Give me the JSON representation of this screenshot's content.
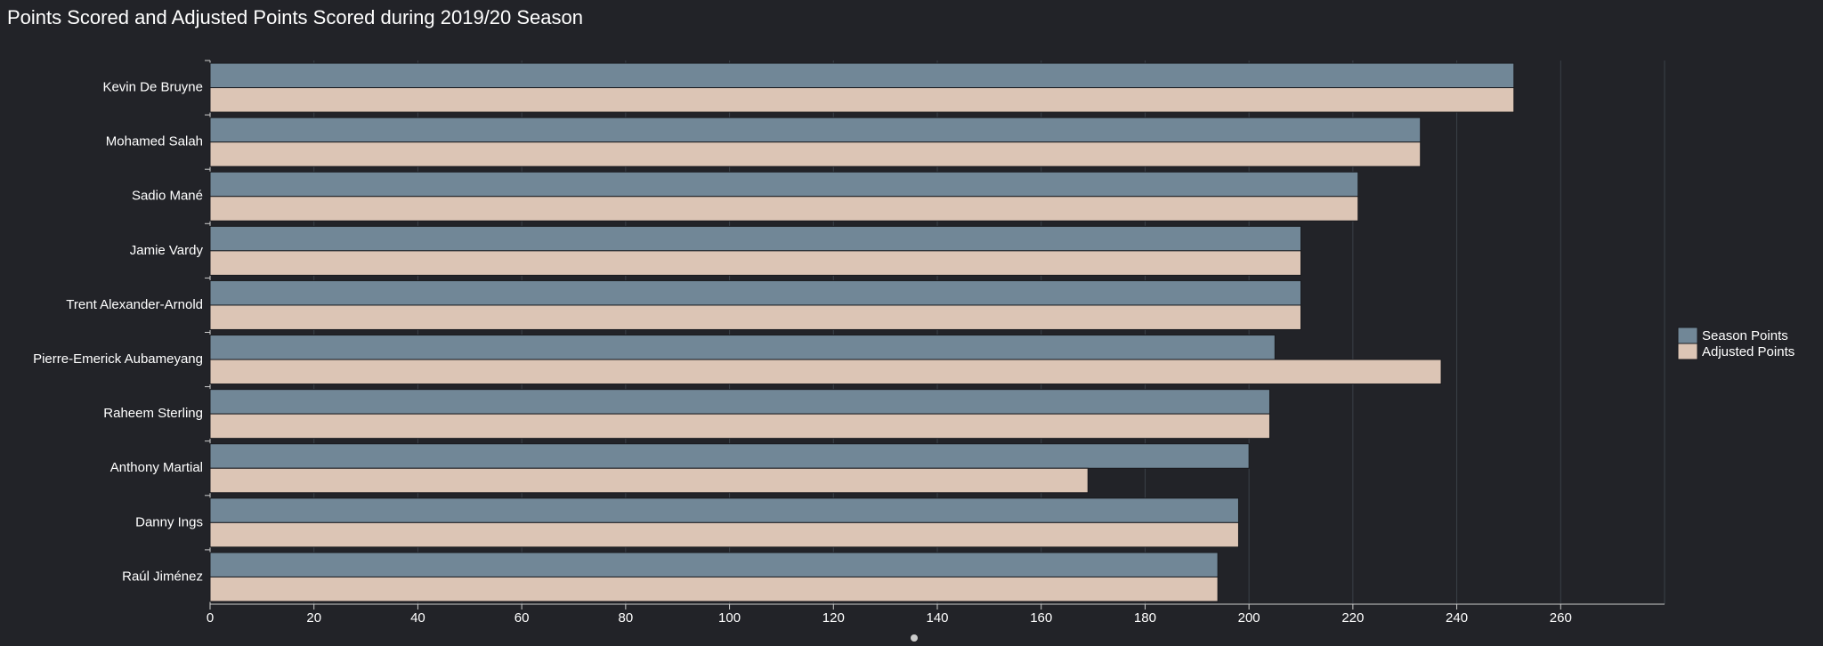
{
  "chart_data": {
    "type": "barh",
    "title": "Points Scored and Adjusted Points Scored during 2019/20 Season",
    "categories": [
      "Kevin De Bruyne",
      "Mohamed Salah",
      "Sadio Mané",
      "Jamie Vardy",
      "Trent Alexander-Arnold",
      "Pierre-Emerick Aubameyang",
      "Raheem Sterling",
      "Anthony Martial",
      "Danny Ings",
      "Raúl Jiménez"
    ],
    "series": [
      {
        "name": "Season Points",
        "color": "#718797",
        "values": [
          251,
          233,
          221,
          210,
          210,
          205,
          204,
          200,
          198,
          194
        ]
      },
      {
        "name": "Adjusted Points",
        "color": "#dcc5b5",
        "values": [
          251,
          233,
          221,
          210,
          210,
          237,
          204,
          169,
          198,
          194
        ]
      }
    ],
    "xlim": [
      0,
      280
    ],
    "xticks": [
      0,
      20,
      40,
      60,
      80,
      100,
      120,
      140,
      160,
      180,
      200,
      220,
      240,
      260
    ],
    "grid": true,
    "legend": "right"
  }
}
